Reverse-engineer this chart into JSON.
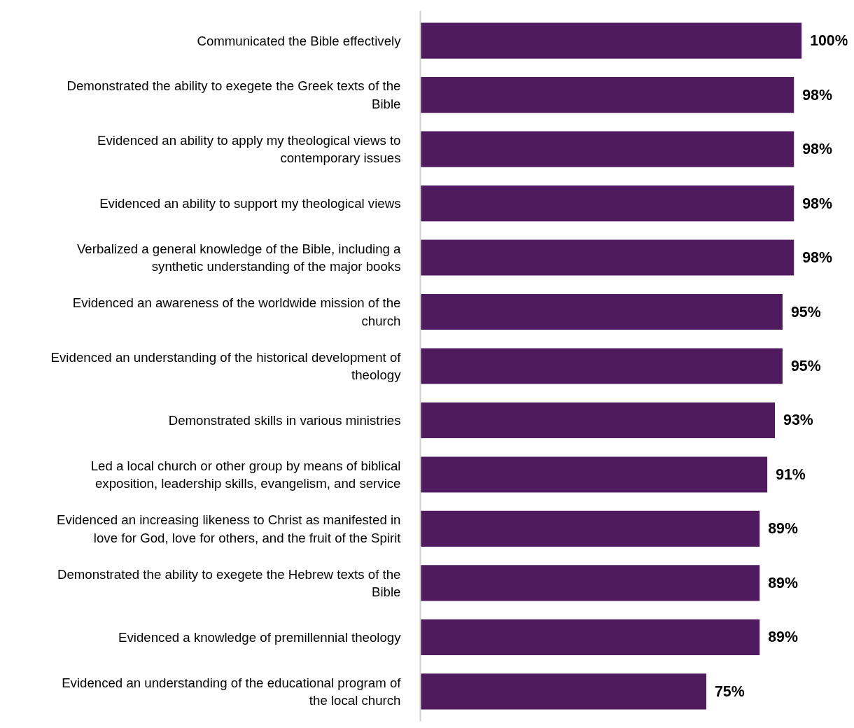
{
  "chart_data": {
    "type": "bar",
    "orientation": "horizontal",
    "data_labels": true,
    "grid": false,
    "tick_labels": "y",
    "categories": [
      "Communicated the Bible effectively",
      "Demonstrated the ability to exegete the Greek texts of the Bible",
      "Evidenced an ability to apply my theological views to contemporary issues",
      "Evidenced an ability to support my theological views",
      "Verbalized a general knowledge of the Bible, including a synthetic understanding of the major books",
      "Evidenced an awareness of the worldwide mission of the church",
      "Evidenced an understanding of the historical development of theology",
      "Demonstrated skills in various ministries",
      "Led a local church or other group by means of biblical exposition, leadership skills, evangelism, and service",
      "Evidenced an increasing likeness to Christ as manifested in love for God, love for others, and the fruit of the Spirit",
      "Demonstrated the ability to exegete the Hebrew texts of the Bible",
      "Evidenced a knowledge of premillennial theology",
      "Evidenced an understanding of the educational program of the local church"
    ],
    "values": [
      100,
      98,
      98,
      98,
      98,
      95,
      95,
      93,
      91,
      89,
      89,
      89,
      75
    ],
    "value_labels": [
      "100%",
      "98%",
      "98%",
      "98%",
      "98%",
      "95%",
      "95%",
      "93%",
      "91%",
      "89%",
      "89%",
      "89%",
      "75%"
    ],
    "color": "#4f1a5e"
  }
}
